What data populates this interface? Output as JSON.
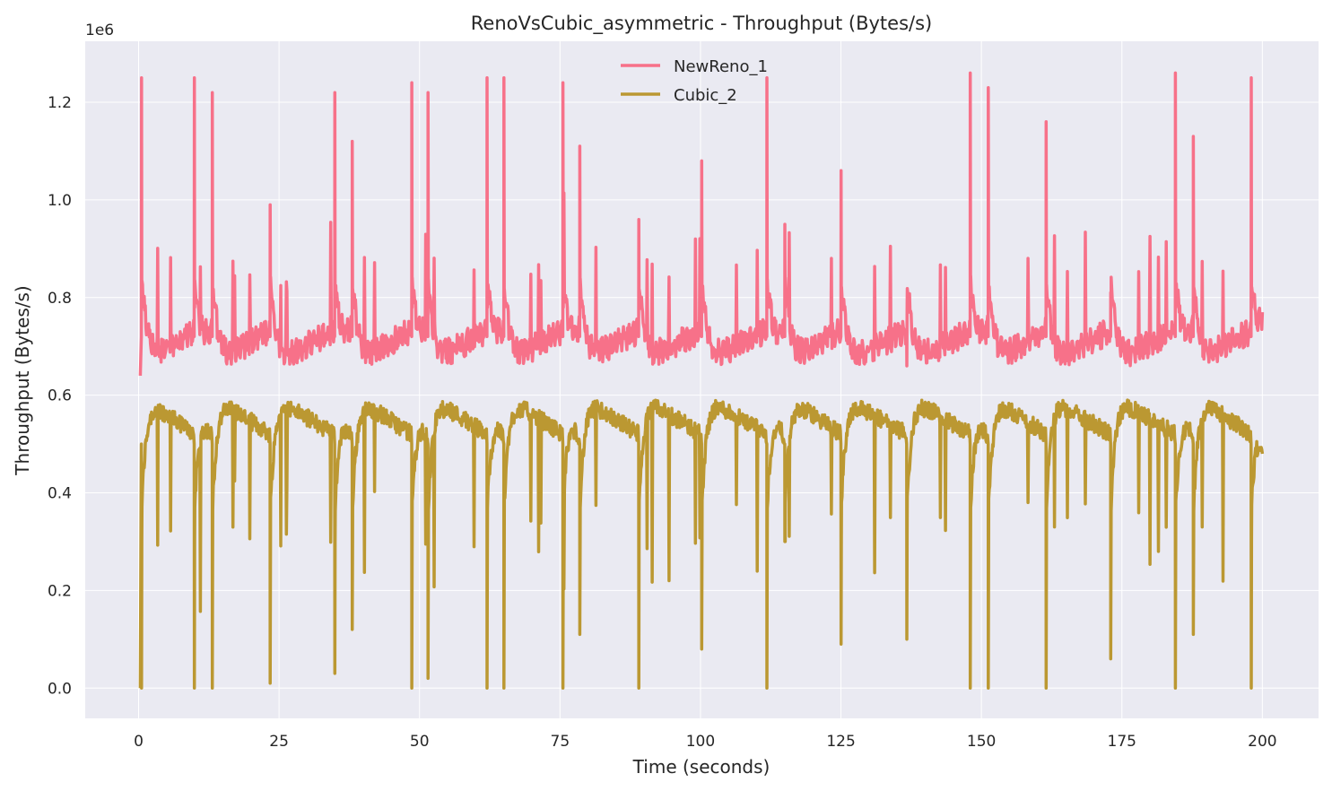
{
  "chart_data": {
    "type": "line",
    "title": "RenoVsCubic_asymmetric - Throughput (Bytes/s)",
    "xlabel": "Time (seconds)",
    "ylabel": "Throughput (Bytes/s)",
    "y_offset_label": "1e6",
    "xlim": [
      -9.5,
      210
    ],
    "ylim": [
      -0.062,
      1.325
    ],
    "y_scale_note": "y values in units of 1e6 Bytes/s",
    "x_ticks": [
      0,
      25,
      50,
      75,
      100,
      125,
      150,
      175,
      200
    ],
    "y_ticks": [
      0.0,
      0.2,
      0.4,
      0.6,
      0.8,
      1.0,
      1.2
    ],
    "y_tick_labels": [
      "0.0",
      "0.2",
      "0.4",
      "0.6",
      "0.8",
      "1.0",
      "1.2"
    ],
    "grid": true,
    "legend_position": "upper-center",
    "colors": {
      "background": "#eaeaf2",
      "grid": "#ffffff",
      "newreno": "#f77189",
      "cubic": "#bb9832"
    },
    "newreno_events": [
      [
        0.5,
        1.25
      ],
      [
        9.9,
        1.25
      ],
      [
        13.1,
        1.22
      ],
      [
        23.4,
        0.99
      ],
      [
        34.9,
        1.22
      ],
      [
        38.0,
        1.12
      ],
      [
        48.6,
        1.24
      ],
      [
        51.5,
        1.22
      ],
      [
        62.0,
        1.25
      ],
      [
        65.0,
        1.25
      ],
      [
        75.5,
        1.24
      ],
      [
        78.5,
        1.11
      ],
      [
        89.0,
        0.96
      ],
      [
        100.2,
        1.08
      ],
      [
        111.8,
        1.25
      ],
      [
        115.0,
        0.95
      ],
      [
        125.0,
        1.06
      ],
      [
        136.7,
        0.66
      ],
      [
        148.0,
        1.26
      ],
      [
        151.2,
        1.23
      ],
      [
        161.5,
        1.16
      ],
      [
        173.0,
        0.81
      ],
      [
        184.5,
        1.26
      ],
      [
        187.7,
        1.13
      ],
      [
        198.0,
        1.25
      ]
    ],
    "cubic_events": [
      [
        0.5,
        0.0
      ],
      [
        9.9,
        0.0
      ],
      [
        13.1,
        0.0
      ],
      [
        23.4,
        0.01
      ],
      [
        34.9,
        0.03
      ],
      [
        38.0,
        0.12
      ],
      [
        48.6,
        0.0
      ],
      [
        51.5,
        0.02
      ],
      [
        62.0,
        0.0
      ],
      [
        65.0,
        0.0
      ],
      [
        75.5,
        0.0
      ],
      [
        78.5,
        0.11
      ],
      [
        89.0,
        0.0
      ],
      [
        100.2,
        0.08
      ],
      [
        111.8,
        0.0
      ],
      [
        115.0,
        0.3
      ],
      [
        125.0,
        0.09
      ],
      [
        136.7,
        0.1
      ],
      [
        148.0,
        0.0
      ],
      [
        151.2,
        0.0
      ],
      [
        161.5,
        0.0
      ],
      [
        173.0,
        0.06
      ],
      [
        184.5,
        0.0
      ],
      [
        187.7,
        0.11
      ],
      [
        198.0,
        0.0
      ]
    ],
    "x_end": 200,
    "series": [
      {
        "name": "NewReno_1",
        "color": "#f77189"
      },
      {
        "name": "Cubic_2",
        "color": "#bb9832"
      }
    ]
  }
}
